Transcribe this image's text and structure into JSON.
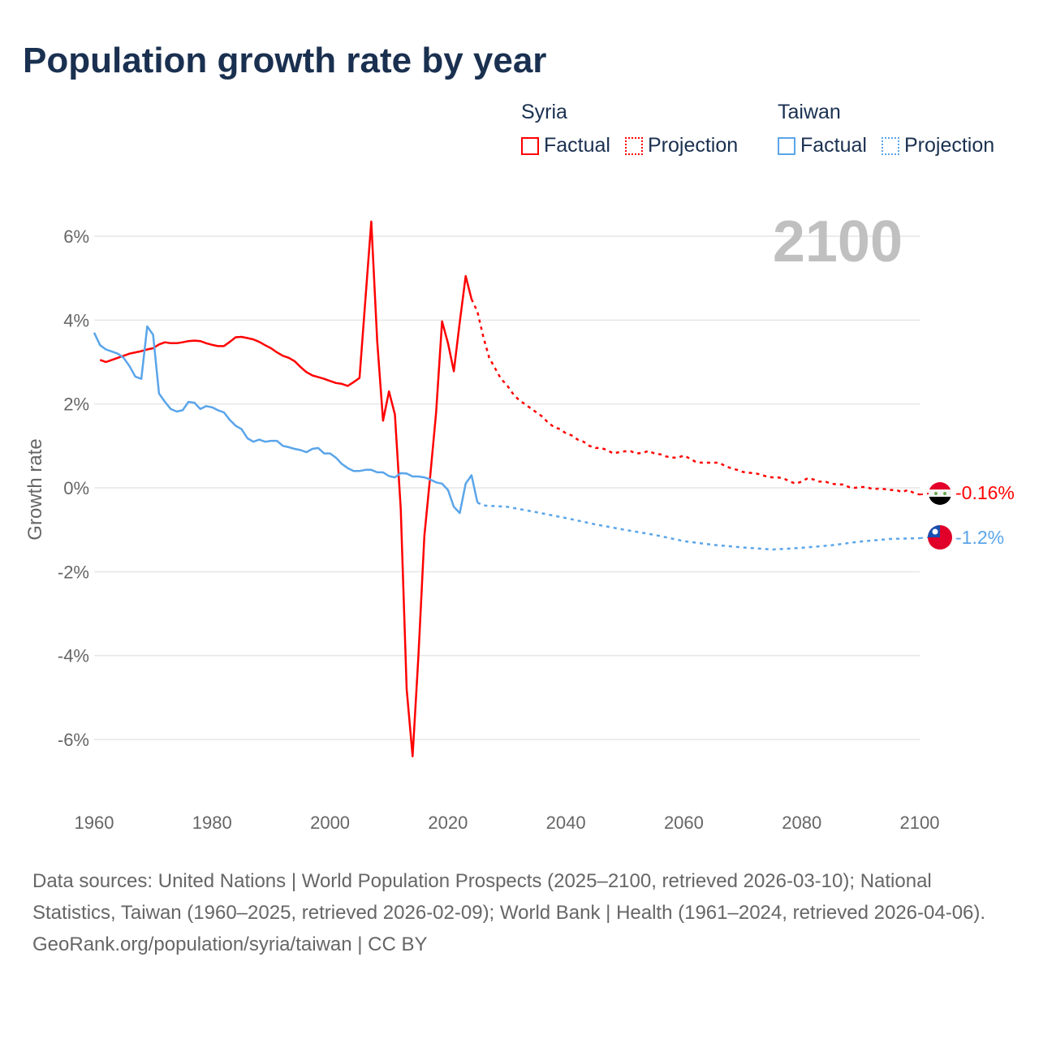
{
  "title": "Population growth rate by year",
  "legend": {
    "groups": [
      {
        "name": "Syria",
        "color": "#ff0000",
        "factual": "Factual",
        "projection": "Projection"
      },
      {
        "name": "Taiwan",
        "color": "#5aa5ea",
        "factual": "Factual",
        "projection": "Projection"
      }
    ]
  },
  "year_label": "2100",
  "footer": {
    "sources": "Data sources: United Nations | World Population Prospects (2025–2100, retrieved 2026-03-10); National Statistics, Taiwan (1960–2025, retrieved 2026-02-09); World Bank | Health (1961–2024, retrieved 2026-04-06).",
    "credit": "GeoRank.org/population/syria/taiwan | CC BY"
  },
  "chart_data": {
    "type": "line",
    "title": "Population growth rate by year",
    "xlabel": "",
    "ylabel": "Growth rate",
    "xlim": [
      1960,
      2100
    ],
    "ylim": [
      -7,
      7
    ],
    "xticks": [
      1960,
      1980,
      2000,
      2020,
      2040,
      2060,
      2080,
      2100
    ],
    "xtick_labels": [
      "1960",
      "1980",
      "2000",
      "2020",
      "2040",
      "2060",
      "2080",
      "2100"
    ],
    "yticks": [
      6,
      4,
      2,
      0,
      -2,
      -4,
      -6
    ],
    "ytick_labels": [
      "6%",
      "4%",
      "2%",
      "0%",
      "-2%",
      "-4%",
      "-6%"
    ],
    "grid": true,
    "legend_position": "top-right",
    "end_labels": {
      "Syria": "-0.16%",
      "Taiwan": "-1.2%"
    },
    "series": [
      {
        "name": "Syria",
        "kind": "Factual",
        "color": "#ff0000",
        "dashed": false,
        "x": [
          1961,
          1962,
          1963,
          1964,
          1965,
          1966,
          1967,
          1968,
          1969,
          1970,
          1971,
          1972,
          1973,
          1974,
          1975,
          1976,
          1977,
          1978,
          1979,
          1980,
          1981,
          1982,
          1983,
          1984,
          1985,
          1986,
          1987,
          1988,
          1989,
          1990,
          1991,
          1992,
          1993,
          1994,
          1995,
          1996,
          1997,
          1998,
          1999,
          2000,
          2001,
          2002,
          2003,
          2004,
          2005,
          2006,
          2007,
          2008,
          2009,
          2010,
          2011,
          2012,
          2013,
          2014,
          2015,
          2016,
          2017,
          2018,
          2019,
          2020,
          2021,
          2022,
          2023,
          2024
        ],
        "y": [
          3.05,
          3.0,
          3.05,
          3.1,
          3.15,
          3.2,
          3.23,
          3.26,
          3.3,
          3.33,
          3.42,
          3.47,
          3.45,
          3.45,
          3.47,
          3.5,
          3.51,
          3.5,
          3.45,
          3.41,
          3.38,
          3.38,
          3.48,
          3.59,
          3.6,
          3.57,
          3.54,
          3.48,
          3.4,
          3.33,
          3.23,
          3.15,
          3.1,
          3.02,
          2.88,
          2.76,
          2.68,
          2.64,
          2.6,
          2.55,
          2.5,
          2.48,
          2.43,
          2.52,
          2.62,
          4.5,
          6.35,
          3.5,
          1.6,
          2.3,
          1.75,
          -0.5,
          -4.8,
          -6.4,
          -4.0,
          -1.15,
          0.3,
          1.8,
          3.97,
          3.45,
          2.78,
          3.95,
          5.05,
          4.5
        ]
      },
      {
        "name": "Syria",
        "kind": "Projection",
        "color": "#ff0000",
        "dashed": true,
        "x": [
          2024,
          2025,
          2026,
          2027,
          2028,
          2029,
          2030,
          2031,
          2032,
          2033,
          2034,
          2035,
          2036,
          2037,
          2038,
          2039,
          2040,
          2041,
          2042,
          2043,
          2044,
          2045,
          2046,
          2047,
          2048,
          2049,
          2050,
          2051,
          2052,
          2053,
          2054,
          2055,
          2056,
          2057,
          2058,
          2059,
          2060,
          2061,
          2062,
          2063,
          2064,
          2065,
          2066,
          2067,
          2068,
          2069,
          2070,
          2071,
          2072,
          2073,
          2074,
          2075,
          2076,
          2077,
          2078,
          2079,
          2080,
          2081,
          2082,
          2083,
          2084,
          2085,
          2086,
          2087,
          2088,
          2089,
          2090,
          2091,
          2092,
          2093,
          2094,
          2095,
          2096,
          2097,
          2098,
          2099,
          2100
        ],
        "y": [
          4.5,
          4.2,
          3.6,
          3.1,
          2.85,
          2.6,
          2.45,
          2.25,
          2.1,
          2.0,
          1.9,
          1.8,
          1.7,
          1.55,
          1.45,
          1.4,
          1.3,
          1.25,
          1.15,
          1.1,
          1.0,
          0.95,
          0.95,
          0.9,
          0.82,
          0.85,
          0.87,
          0.87,
          0.82,
          0.83,
          0.88,
          0.82,
          0.8,
          0.75,
          0.72,
          0.72,
          0.77,
          0.7,
          0.62,
          0.6,
          0.6,
          0.6,
          0.6,
          0.52,
          0.47,
          0.43,
          0.38,
          0.36,
          0.35,
          0.32,
          0.27,
          0.25,
          0.25,
          0.22,
          0.15,
          0.1,
          0.15,
          0.23,
          0.2,
          0.15,
          0.15,
          0.1,
          0.08,
          0.08,
          0.02,
          0.0,
          0.02,
          0.02,
          -0.03,
          -0.02,
          -0.03,
          -0.05,
          -0.05,
          -0.1,
          -0.05,
          -0.12,
          -0.16
        ]
      },
      {
        "name": "Taiwan",
        "kind": "Factual",
        "color": "#5aa5ea",
        "dashed": false,
        "x": [
          1960,
          1961,
          1962,
          1963,
          1964,
          1965,
          1966,
          1967,
          1968,
          1969,
          1970,
          1971,
          1972,
          1973,
          1974,
          1975,
          1976,
          1977,
          1978,
          1979,
          1980,
          1981,
          1982,
          1983,
          1984,
          1985,
          1986,
          1987,
          1988,
          1989,
          1990,
          1991,
          1992,
          1993,
          1994,
          1995,
          1996,
          1997,
          1998,
          1999,
          2000,
          2001,
          2002,
          2003,
          2004,
          2005,
          2006,
          2007,
          2008,
          2009,
          2010,
          2011,
          2012,
          2013,
          2014,
          2015,
          2016,
          2017,
          2018,
          2019,
          2020,
          2021,
          2022,
          2023,
          2024,
          2025
        ],
        "y": [
          3.7,
          3.4,
          3.3,
          3.25,
          3.2,
          3.1,
          2.9,
          2.65,
          2.6,
          3.85,
          3.65,
          2.25,
          2.05,
          1.88,
          1.82,
          1.85,
          2.05,
          2.03,
          1.88,
          1.95,
          1.92,
          1.85,
          1.8,
          1.62,
          1.48,
          1.4,
          1.18,
          1.1,
          1.15,
          1.1,
          1.12,
          1.12,
          1.0,
          0.97,
          0.93,
          0.9,
          0.85,
          0.93,
          0.95,
          0.82,
          0.82,
          0.72,
          0.57,
          0.47,
          0.4,
          0.4,
          0.43,
          0.43,
          0.37,
          0.37,
          0.28,
          0.25,
          0.35,
          0.34,
          0.27,
          0.27,
          0.25,
          0.2,
          0.13,
          0.1,
          -0.05,
          -0.45,
          -0.6,
          0.1,
          0.3,
          -0.35
        ]
      },
      {
        "name": "Taiwan",
        "kind": "Projection",
        "color": "#5aa5ea",
        "dashed": true,
        "x": [
          2025,
          2026,
          2030,
          2035,
          2040,
          2045,
          2050,
          2055,
          2060,
          2065,
          2070,
          2075,
          2080,
          2085,
          2090,
          2095,
          2100
        ],
        "y": [
          -0.35,
          -0.42,
          -0.45,
          -0.58,
          -0.72,
          -0.87,
          -1.0,
          -1.12,
          -1.27,
          -1.36,
          -1.42,
          -1.47,
          -1.43,
          -1.37,
          -1.28,
          -1.22,
          -1.2
        ]
      }
    ]
  }
}
